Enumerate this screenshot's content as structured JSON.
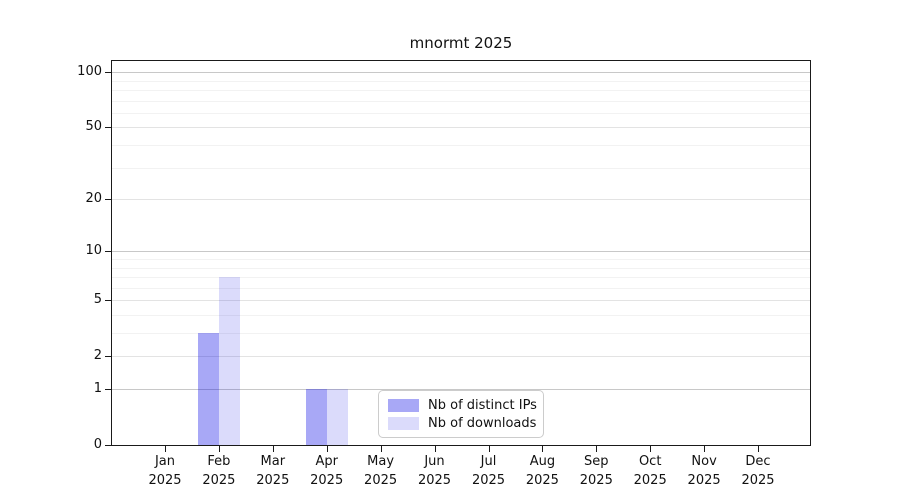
{
  "title": "mnormt 2025",
  "chart_data": {
    "type": "bar",
    "title": "mnormt 2025",
    "categories": [
      "Jan 2025",
      "Feb 2025",
      "Mar 2025",
      "Apr 2025",
      "May 2025",
      "Jun 2025",
      "Jul 2025",
      "Aug 2025",
      "Sep 2025",
      "Oct 2025",
      "Nov 2025",
      "Dec 2025"
    ],
    "category_month_labels": [
      "Jan",
      "Feb",
      "Mar",
      "Apr",
      "May",
      "Jun",
      "Jul",
      "Aug",
      "Sep",
      "Oct",
      "Nov",
      "Dec"
    ],
    "category_year_label": "2025",
    "series": [
      {
        "name": "Nb of distinct IPs",
        "color": "rgba(0,0,230,0.34)",
        "values": [
          0,
          3,
          0,
          1,
          0,
          0,
          0,
          0,
          0,
          0,
          0,
          0
        ]
      },
      {
        "name": "Nb of downloads",
        "color": "rgba(0,0,230,0.14)",
        "values": [
          0,
          7,
          0,
          1,
          0,
          0,
          0,
          0,
          0,
          0,
          0,
          0
        ]
      }
    ],
    "xlabel": "",
    "ylabel": "",
    "yscale": "log1p",
    "ylim": [
      0,
      115
    ],
    "yticks": [
      0,
      1,
      2,
      5,
      10,
      20,
      50,
      100
    ],
    "ygrid_decade_ticks": [
      1,
      10,
      100
    ],
    "ygrid_minor": [
      3,
      4,
      6,
      7,
      8,
      9,
      30,
      40,
      60,
      70,
      80,
      90
    ],
    "grid": "horizontal",
    "legend_position": "inside-bottom-center"
  },
  "colors": {
    "background": "#ffffff",
    "spine": "#1a1a1a",
    "grid_major": "#c8c8c8",
    "grid_mid": "#e3e3e3",
    "grid_minor": "#f2f2f2",
    "legend_border": "#cccccc",
    "text": "#111111"
  }
}
